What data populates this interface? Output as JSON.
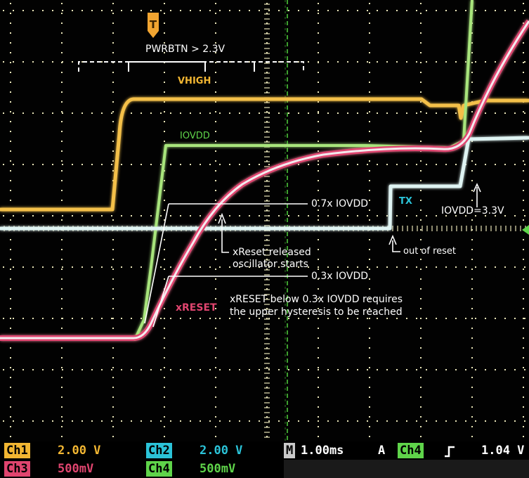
{
  "trigger_marker": "T",
  "labels": {
    "pwrbtn": "PWRBTN  > 2.3V",
    "vhigh": "VHIGH",
    "iovdd": "IOVDD",
    "tx": "TX",
    "xreset": "xRESET",
    "iovdd_33": "IOVDD=3.3V",
    "iovdd_07": "0.7x IOVDD",
    "iovdd_03": "0.3x IOVDD",
    "xreset_released_1": "xReset released",
    "xreset_released_2": "oscillator starts",
    "out_of_reset": "out of reset",
    "hysteresis_1": "xRESET below 0.3x IOVDD requires",
    "hysteresis_2": "the upper hysteresis to be reached"
  },
  "status_bar": {
    "ch1": {
      "label": "Ch1",
      "value": "2.00 V"
    },
    "ch2": {
      "label": "Ch2",
      "value": "2.00 V"
    },
    "ch3": {
      "label": "Ch3",
      "value": "500mV"
    },
    "ch4": {
      "label": "Ch4",
      "value": "500mV"
    },
    "timebase": {
      "label": "M",
      "value": "1.00ms"
    },
    "trigger": {
      "mode": "A",
      "source": "Ch4",
      "slope_icon": "rising-edge-icon",
      "level": "1.04 V"
    }
  },
  "colors": {
    "vhigh": "#f2b632",
    "iovdd": "#5fd44a",
    "tx": "#2bc3d8",
    "xreset": "#e0456f",
    "grid": "#e8e4b8",
    "ch1_chip": "#f2b632",
    "ch2_chip": "#2bc3d8",
    "ch3_chip": "#e0456f",
    "ch4_chip": "#5fd44a"
  }
}
